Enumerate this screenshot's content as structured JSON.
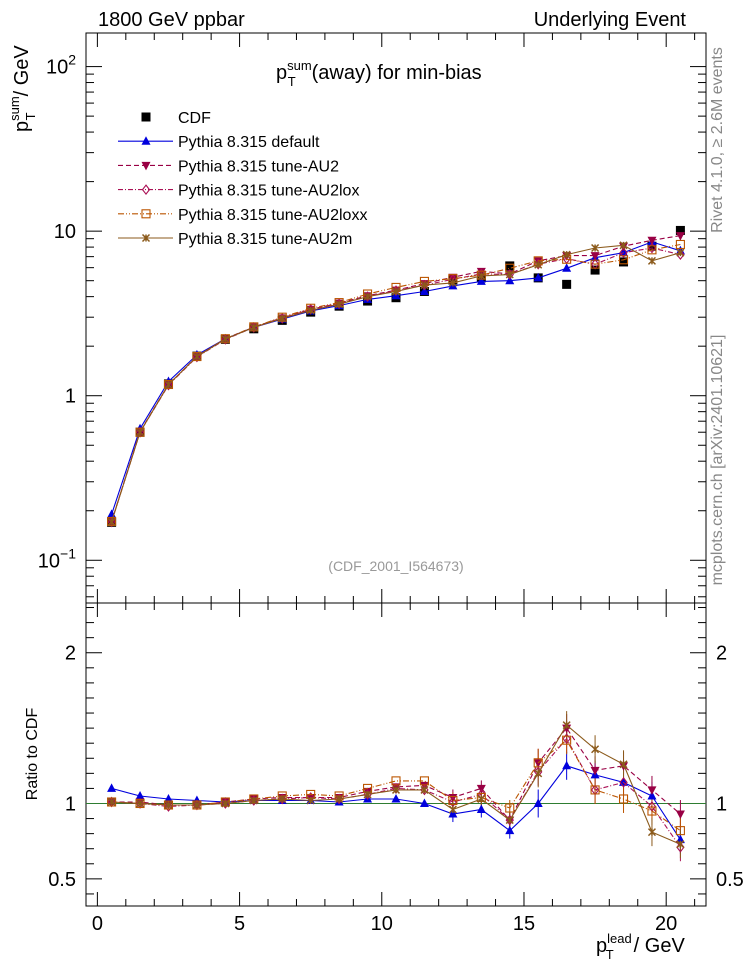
{
  "header": {
    "left": "1800 GeV ppbar",
    "right": "Underlying Event"
  },
  "side": {
    "rivet": "Rivet 4.1.0, ≥ 2.6M events",
    "site": "mcplots.cern.ch [arXiv:2401.10621]"
  },
  "chart_data": [
    {
      "type": "line",
      "panel": "main",
      "title": "p_T^sum (away) for min-bias",
      "title_parts": {
        "p": "p",
        "sup": "sum",
        "sub": "T",
        "rest": "(away) for min-bias"
      },
      "ylabel_parts": {
        "p": "p",
        "sup": "sum",
        "sub": "T",
        "rest": "/ GeV"
      },
      "xlabel": "",
      "yscale": "log",
      "ylim": [
        0.055,
        160
      ],
      "xlim": [
        -0.4,
        21.4
      ],
      "yticks": [
        {
          "v": 0.1,
          "base": "10",
          "exp": "−1"
        },
        {
          "v": 1,
          "base": "1",
          "exp": ""
        },
        {
          "v": 10,
          "base": "10",
          "exp": ""
        },
        {
          "v": 100,
          "base": "10",
          "exp": "2"
        }
      ],
      "analysis_tag": "(CDF_2001_I564673)",
      "x": [
        0.5,
        1.5,
        2.5,
        3.5,
        4.5,
        5.5,
        6.5,
        7.5,
        8.5,
        9.5,
        10.5,
        11.5,
        12.5,
        13.5,
        14.5,
        15.5,
        16.5,
        17.5,
        18.5,
        19.5,
        20.5
      ],
      "series": [
        {
          "name": "CDF",
          "color": "#000000",
          "marker": "square-filled",
          "line": "none",
          "values": [
            0.17,
            0.6,
            1.18,
            1.74,
            2.2,
            2.55,
            2.87,
            3.22,
            3.5,
            3.76,
            3.94,
            4.3,
            5.05,
            5.2,
            6.15,
            5.2,
            4.75,
            5.8,
            6.5,
            8.1,
            10.1
          ]
        },
        {
          "name": "Pythia 8.315 default",
          "color": "#0000dd",
          "marker": "triangle-up",
          "line": "solid",
          "values": [
            0.19,
            0.63,
            1.22,
            1.77,
            2.22,
            2.6,
            2.92,
            3.27,
            3.53,
            3.85,
            4.05,
            4.3,
            4.65,
            4.95,
            5.0,
            5.2,
            5.95,
            6.9,
            7.4,
            8.6,
            7.6
          ]
        },
        {
          "name": "Pythia 8.315 tune-AU2",
          "color": "#990044",
          "marker": "triangle-down",
          "line": "dashed",
          "values": [
            0.172,
            0.605,
            1.17,
            1.73,
            2.22,
            2.62,
            2.97,
            3.35,
            3.65,
            4.05,
            4.38,
            4.8,
            5.25,
            5.7,
            5.5,
            6.6,
            7.1,
            7.1,
            8.1,
            8.8,
            9.4
          ]
        },
        {
          "name": "Pythia 8.315 tune-AU2lox",
          "color": "#aa1155",
          "marker": "diamond-open",
          "line": "dashdot",
          "values": [
            0.171,
            0.6,
            1.16,
            1.72,
            2.2,
            2.6,
            2.95,
            3.35,
            3.62,
            4.0,
            4.35,
            4.7,
            5.1,
            5.5,
            5.45,
            6.3,
            6.8,
            6.3,
            7.4,
            7.9,
            7.2
          ]
        },
        {
          "name": "Pythia 8.315 tune-AU2loxx",
          "color": "#bb5500",
          "marker": "square-open",
          "line": "dashdotdot",
          "values": [
            0.172,
            0.6,
            1.17,
            1.73,
            2.22,
            2.62,
            3.0,
            3.4,
            3.68,
            4.15,
            4.55,
            4.95,
            5.15,
            5.4,
            5.95,
            6.6,
            6.75,
            6.3,
            6.7,
            7.7,
            8.3
          ]
        },
        {
          "name": "Pythia 8.315 tune-AU2m",
          "color": "#8b5a1b",
          "marker": "star",
          "line": "solid",
          "values": [
            0.171,
            0.6,
            1.17,
            1.73,
            2.21,
            2.6,
            2.95,
            3.3,
            3.6,
            4.0,
            4.3,
            4.7,
            4.85,
            5.35,
            5.45,
            6.25,
            7.2,
            7.9,
            8.2,
            6.6,
            7.4
          ]
        }
      ]
    },
    {
      "type": "line",
      "panel": "ratio",
      "ylabel": "Ratio to CDF",
      "xlabel_parts": {
        "p": "p",
        "sup": "lead",
        "sub": "T",
        "rest": "/ GeV"
      },
      "ylim": [
        0.32,
        2.33
      ],
      "xlim": [
        -0.4,
        21.4
      ],
      "yticks": [
        0.5,
        1,
        2
      ],
      "ytick_labels": [
        "0.5",
        "1",
        "2"
      ],
      "xticks": [
        0,
        5,
        10,
        15,
        20
      ],
      "xtick_labels": [
        "0",
        "5",
        "10",
        "15",
        "20"
      ],
      "reference": 1,
      "x": [
        0.5,
        1.5,
        2.5,
        3.5,
        4.5,
        5.5,
        6.5,
        7.5,
        8.5,
        9.5,
        10.5,
        11.5,
        12.5,
        13.5,
        14.5,
        15.5,
        16.5,
        17.5,
        18.5,
        19.5,
        20.5
      ],
      "series": [
        {
          "name": "Pythia 8.315 default",
          "color": "#0000dd",
          "marker": "triangle-up",
          "line": "solid",
          "values": [
            1.1,
            1.05,
            1.03,
            1.02,
            1.01,
            1.02,
            1.02,
            1.02,
            1.01,
            1.03,
            1.03,
            1.0,
            0.93,
            0.96,
            0.82,
            1.0,
            1.25,
            1.19,
            1.14,
            1.05,
            0.76
          ]
        },
        {
          "name": "Pythia 8.315 tune-AU2",
          "color": "#990044",
          "marker": "triangle-down",
          "line": "dashed",
          "values": [
            1.01,
            1.01,
            0.99,
            0.99,
            1.01,
            1.03,
            1.04,
            1.04,
            1.04,
            1.08,
            1.11,
            1.12,
            1.04,
            1.1,
            0.89,
            1.27,
            1.5,
            1.22,
            1.25,
            1.09,
            0.93
          ]
        },
        {
          "name": "Pythia 8.315 tune-AU2lox",
          "color": "#aa1155",
          "marker": "diamond-open",
          "line": "dashdot",
          "values": [
            1.01,
            1.0,
            0.98,
            0.99,
            1.0,
            1.02,
            1.03,
            1.04,
            1.03,
            1.06,
            1.1,
            1.09,
            1.01,
            1.06,
            0.89,
            1.21,
            1.43,
            1.09,
            1.14,
            0.98,
            0.71
          ]
        },
        {
          "name": "Pythia 8.315 tune-AU2loxx",
          "color": "#bb5500",
          "marker": "square-open",
          "line": "dashdotdot",
          "values": [
            1.01,
            1.0,
            0.99,
            0.99,
            1.01,
            1.03,
            1.05,
            1.06,
            1.05,
            1.1,
            1.15,
            1.15,
            1.02,
            1.04,
            0.97,
            1.27,
            1.42,
            1.09,
            1.03,
            0.95,
            0.82
          ]
        },
        {
          "name": "Pythia 8.315 tune-AU2m",
          "color": "#8b5a1b",
          "marker": "star",
          "line": "solid",
          "values": [
            1.01,
            1.0,
            0.99,
            0.99,
            1.0,
            1.02,
            1.03,
            1.02,
            1.03,
            1.06,
            1.09,
            1.09,
            0.96,
            1.03,
            0.89,
            1.2,
            1.52,
            1.36,
            1.26,
            0.81,
            0.73
          ]
        }
      ]
    }
  ]
}
